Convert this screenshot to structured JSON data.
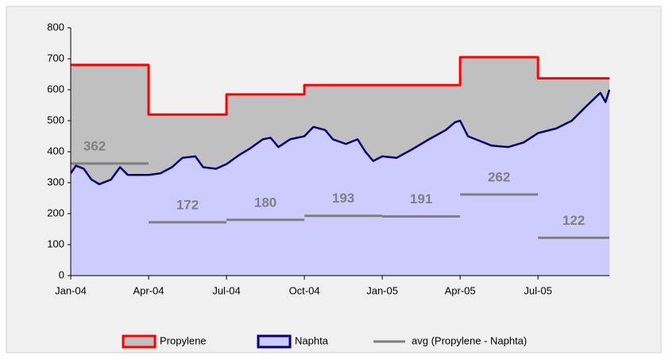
{
  "chart_data": {
    "type": "area",
    "xlim": [
      0,
      20.75
    ],
    "ylim": [
      0,
      800
    ],
    "yticks": [
      0,
      100,
      200,
      300,
      400,
      500,
      600,
      700,
      800
    ],
    "xticks": [
      {
        "value": 0,
        "label": "Jan-04"
      },
      {
        "value": 3,
        "label": "Apr-04"
      },
      {
        "value": 6,
        "label": "Jul-04"
      },
      {
        "value": 9,
        "label": "Oct-04"
      },
      {
        "value": 12,
        "label": "Jan-05"
      },
      {
        "value": 15,
        "label": "Apr-05"
      },
      {
        "value": 18,
        "label": "Jul-05"
      }
    ],
    "series": [
      {
        "name": "Propylene",
        "color": "#ff0000",
        "fill": "#c0c0c0",
        "x": [
          0,
          3,
          3,
          6,
          6,
          9,
          9,
          15,
          15,
          18,
          18,
          20.75
        ],
        "values": [
          680,
          680,
          520,
          520,
          585,
          585,
          615,
          615,
          705,
          705,
          637,
          637
        ]
      },
      {
        "name": "Naphta",
        "color": "#000080",
        "fill": "#ccccff",
        "x": [
          0,
          0.2,
          0.5,
          0.8,
          1.1,
          1.55,
          1.9,
          2.2,
          3,
          3.45,
          3.9,
          4.3,
          4.8,
          5.1,
          5.6,
          6,
          6.5,
          6.9,
          7.4,
          7.7,
          8,
          8.45,
          9,
          9.35,
          9.8,
          10.1,
          10.6,
          11.05,
          11.35,
          11.65,
          12,
          12.55,
          13.2,
          13.8,
          14.45,
          14.8,
          15,
          15.3,
          15.6,
          16.2,
          16.85,
          17.45,
          18,
          18.7,
          19.3,
          19.9,
          20.4,
          20.6,
          20.75
        ],
        "values": [
          330,
          355,
          345,
          310,
          295,
          310,
          350,
          325,
          325,
          330,
          350,
          380,
          385,
          350,
          345,
          360,
          390,
          410,
          440,
          445,
          415,
          440,
          450,
          480,
          470,
          440,
          425,
          440,
          400,
          370,
          385,
          380,
          410,
          440,
          470,
          495,
          500,
          450,
          440,
          420,
          415,
          430,
          460,
          475,
          500,
          550,
          590,
          560,
          600
        ]
      },
      {
        "name": "avg (Propylene - Naphta)",
        "color": "#808080",
        "starts": [
          0,
          3,
          6,
          9,
          12,
          15,
          18
        ],
        "ends": [
          3,
          6,
          9,
          12,
          15,
          18,
          20.75
        ],
        "values": [
          362,
          172,
          180,
          193,
          191,
          262,
          122
        ]
      }
    ]
  }
}
